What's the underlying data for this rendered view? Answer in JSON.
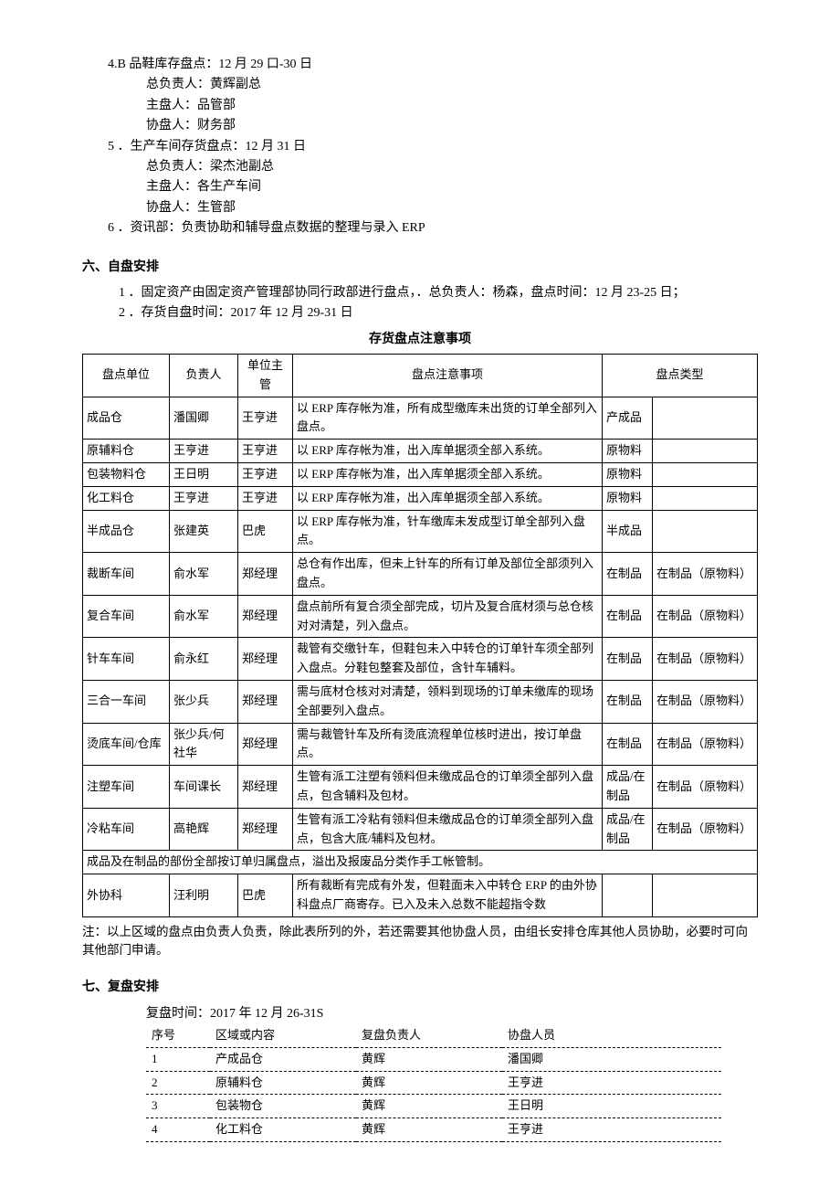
{
  "top": {
    "l1": "4.B 品鞋库存盘点：12 月 29 口-30 日",
    "l2": "总负责人：黄辉副总",
    "l3": "主盘人：品管部",
    "l4": "协盘人：财务部",
    "l5": "5 ．生产车间存货盘点：12 月 31 日",
    "l6": "总负责人：梁杰池副总",
    "l7": "主盘人：各生产车间",
    "l8": "协盘人：生管部",
    "l9": "6 ．资讯部：负责协助和辅导盘点数据的整理与录入 ERP"
  },
  "sec6": {
    "h": "六、自盘安排",
    "l1": "1 ．固定资产由固定资产管理部协同行政部进行盘点，．总负责人：杨森，盘点时间：12 月 23-25 日；",
    "l2": "2 ．存货自盘时间：2017 年 12 月 29-31 日",
    "tableTitle": "存货盘点注意事项"
  },
  "t1": {
    "headers": {
      "c1": "盘点单位",
      "c2": "负责人",
      "c3": "单位主管",
      "c4": "盘点注意事项",
      "c5": "盘点类型"
    },
    "rows": [
      {
        "c1": "成品仓",
        "c2": "潘国卿",
        "c3": "王亨进",
        "c4": "以 ERP 库存帐为准，所有成型缴库未出货的订单全部列入盘点。",
        "c5": "产成品",
        "c6": ""
      },
      {
        "c1": "原辅料仓",
        "c2": "王亨进",
        "c3": "王亨进",
        "c4": "以 ERP 库存帐为准，出入库单据须全部入系统。",
        "c5": "原物料",
        "c6": ""
      },
      {
        "c1": "包装物料仓",
        "c2": "王日明",
        "c3": "王亨进",
        "c4": "以 ERP 库存帐为准，出入库单据须全部入系统。",
        "c5": "原物料",
        "c6": ""
      },
      {
        "c1": "化工料仓",
        "c2": "王亨进",
        "c3": "王亨进",
        "c4": "以 ERP 库存帐为准，出入库单据须全部入系统。",
        "c5": "原物料",
        "c6": ""
      },
      {
        "c1": "半成品仓",
        "c2": "张建英",
        "c3": "巴虎",
        "c4": "以 ERP 库存帐为准，针车缴库未发成型订单全部列入盘点。",
        "c5": "半成品",
        "c6": ""
      },
      {
        "c1": "裁断车间",
        "c2": "俞水军",
        "c3": "郑经理",
        "c4": "总仓有作出库，但未上针车的所有订单及部位全部须列入盘点。",
        "c5": "在制品",
        "c6": "在制品（原物料）"
      },
      {
        "c1": "复合车间",
        "c2": "俞水军",
        "c3": "郑经理",
        "c4": "盘点前所有复合须全部完成，切片及复合底材须与总仓核对对清楚，列入盘点。",
        "c5": "在制品",
        "c6": "在制品（原物料）"
      },
      {
        "c1": "针车车间",
        "c2": "俞永红",
        "c3": "郑经理",
        "c4": "裁管有交缴针车，但鞋包未入中转仓的订单针车须全部列入盘点。分鞋包整套及部位，含针车辅料。",
        "c5": "在制品",
        "c6": "在制品（原物料）"
      },
      {
        "c1": "三合一车间",
        "c2": "张少兵",
        "c3": "郑经理",
        "c4": "需与底材仓核对对清楚，领料到现场的订单未缴库的现场全部要列入盘点。",
        "c5": "在制品",
        "c6": "在制品（原物料）"
      },
      {
        "c1": "烫底车间/仓库",
        "c2": "张少兵/何社华",
        "c3": "郑经理",
        "c4": "需与裁管针车及所有烫底流程单位核时进出，按订单盘点。",
        "c5": "在制品",
        "c6": "在制品（原物料）"
      },
      {
        "c1": "注塑车间",
        "c2": "车间课长",
        "c3": "郑经理",
        "c4": "生管有派工注塑有领料但未缴成品仓的订单须全部列入盘点，包含辅料及包材。",
        "c5": "成品/在制品",
        "c6": "在制品（原物料）"
      },
      {
        "c1": "冷粘车间",
        "c2": "高艳辉",
        "c3": "郑经理",
        "c4": "生管有派工冷粘有领料但未缴成品仓的订单须全部列入盘点，包含大底/辅料及包材。",
        "c5": "成品/在制品",
        "c6": "在制品（原物料）"
      }
    ],
    "mergeRow": "成品及在制品的部份全部按订单归属盘点，溢出及报废品分类作手工帐管制。",
    "lastRow": {
      "c1": "外协科",
      "c2": "汪利明",
      "c3": "巴虎",
      "c4": "所有裁断有完成有外发，但鞋面未入中转仓 ERP 的由外协科盘点厂商寄存。已入及未入总数不能超指令数",
      "c5": "",
      "c6": ""
    }
  },
  "t1note": "注：以上区域的盘点由负责人负责，除此表所列的外，若还需要其他协盘人员，由组长安排仓库其他人员协助，必要时可向其他部门申请。",
  "sec7": {
    "h": "七、复盘安排",
    "l1": "复盘时间：2017 年 12 月 26-31S"
  },
  "t2": {
    "headers": {
      "c1": "序号",
      "c2": "区域或内容",
      "c3": "复盘负责人",
      "c4": "协盘人员"
    },
    "rows": [
      {
        "c1": "1",
        "c2": "产成品仓",
        "c3": "黄辉",
        "c4": "潘国卿"
      },
      {
        "c1": "2",
        "c2": "原辅料仓",
        "c3": "黄辉",
        "c4": "王亨进"
      },
      {
        "c1": "3",
        "c2": "包装物仓",
        "c3": "黄辉",
        "c4": "王日明"
      },
      {
        "c1": "4",
        "c2": "化工料仓",
        "c3": "黄辉",
        "c4": "王亨进"
      }
    ]
  }
}
